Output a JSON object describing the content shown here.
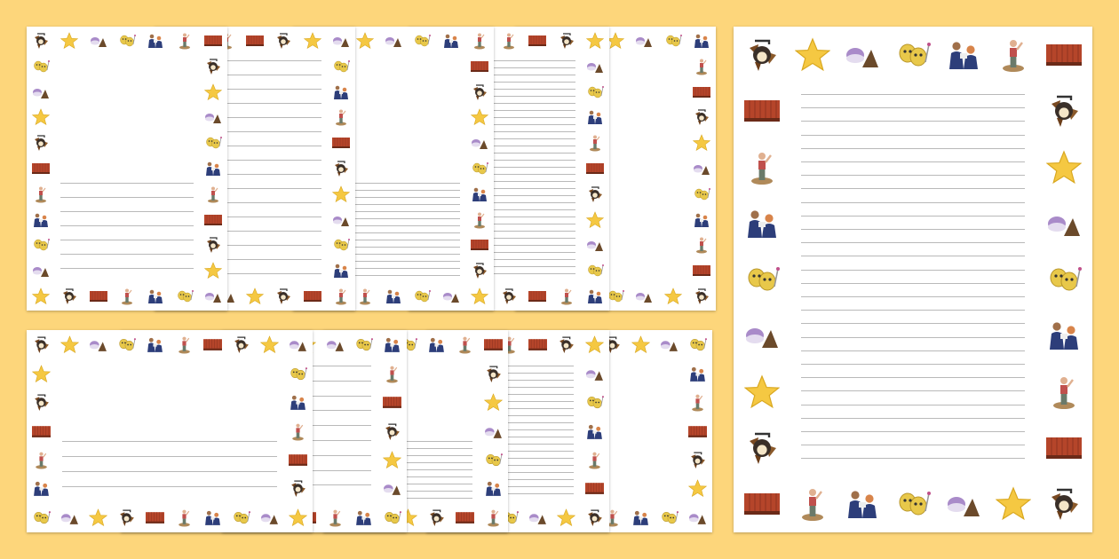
{
  "background_color": "#fdd67b",
  "motifs": [
    "spotlight",
    "star",
    "props",
    "theatre-masks",
    "actors",
    "performer",
    "curtain"
  ],
  "colors": {
    "star": "#f5c842",
    "curtain": "#b5452a",
    "actors": "#2d3e7a",
    "masks": "#e8c84a",
    "props": "#a98bc9",
    "rule_line": "#b9b9b9"
  },
  "groups": [
    {
      "name": "portrait-small-set",
      "pages": [
        {
          "line_style": "lower-wide"
        },
        {
          "line_style": "wide"
        },
        {
          "line_style": "lower-narrow"
        },
        {
          "line_style": "narrow"
        },
        {
          "line_style": "blank"
        }
      ]
    },
    {
      "name": "landscape-set",
      "pages": [
        {
          "line_style": "lower-wide"
        },
        {
          "line_style": "wide"
        },
        {
          "line_style": "lower-narrow"
        },
        {
          "line_style": "narrow"
        },
        {
          "line_style": "blank"
        }
      ]
    },
    {
      "name": "portrait-large-preview",
      "pages": [
        {
          "line_style": "narrow"
        }
      ]
    }
  ]
}
